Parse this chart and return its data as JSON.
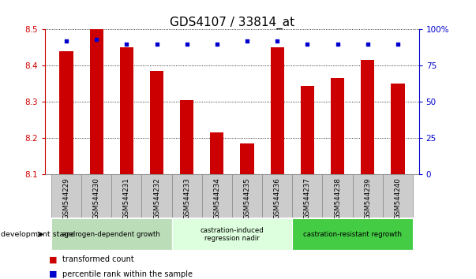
{
  "title": "GDS4107 / 33814_at",
  "samples": [
    "GSM544229",
    "GSM544230",
    "GSM544231",
    "GSM544232",
    "GSM544233",
    "GSM544234",
    "GSM544235",
    "GSM544236",
    "GSM544237",
    "GSM544238",
    "GSM544239",
    "GSM544240"
  ],
  "transformed_count": [
    8.44,
    8.5,
    8.45,
    8.385,
    8.305,
    8.215,
    8.185,
    8.45,
    8.345,
    8.365,
    8.415,
    8.35
  ],
  "percentile_rank": [
    92,
    93,
    90,
    90,
    90,
    90,
    92,
    92,
    90,
    90,
    90,
    90
  ],
  "ymin": 8.1,
  "ymax": 8.5,
  "yticks": [
    8.1,
    8.2,
    8.3,
    8.4,
    8.5
  ],
  "right_yticks": [
    0,
    25,
    50,
    75,
    100
  ],
  "bar_color": "#cc0000",
  "dot_color": "#0000cc",
  "bar_width": 0.45,
  "groups": [
    {
      "label": "androgen-dependent growth",
      "start": 0,
      "end": 3,
      "color": "#bbddb8"
    },
    {
      "label": "castration-induced\nregression nadir",
      "start": 4,
      "end": 7,
      "color": "#ddffdd"
    },
    {
      "label": "castration-resistant regrowth",
      "start": 8,
      "end": 11,
      "color": "#44cc44"
    }
  ],
  "dev_stage_label": "development stage",
  "legend_items": [
    {
      "color": "#cc0000",
      "label": "transformed count"
    },
    {
      "color": "#0000cc",
      "label": "percentile rank within the sample"
    }
  ],
  "title_fontsize": 11,
  "axis_color_left": "#cc0000",
  "axis_color_right": "#0000cc",
  "background_color": "#ffffff",
  "tickbox_color": "#cccccc",
  "tickbox_edge": "#888888"
}
